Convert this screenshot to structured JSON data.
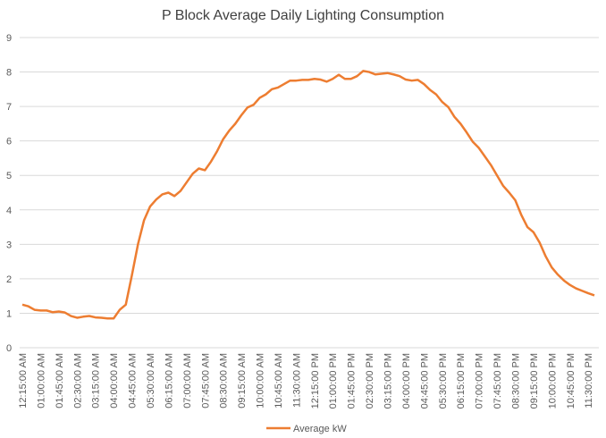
{
  "chart_data": {
    "type": "line",
    "title": "P Block Average Daily Lighting Consumption",
    "categories": [
      "12:15:00 AM",
      null,
      null,
      "01:00:00 AM",
      null,
      null,
      "01:45:00 AM",
      null,
      null,
      "02:30:00 AM",
      null,
      null,
      "03:15:00 AM",
      null,
      null,
      "04:00:00 AM",
      null,
      null,
      "04:45:00 AM",
      null,
      null,
      "05:30:00 AM",
      null,
      null,
      "06:15:00 AM",
      null,
      null,
      "07:00:00 AM",
      null,
      null,
      "07:45:00 AM",
      null,
      null,
      "08:30:00 AM",
      null,
      null,
      "09:15:00 AM",
      null,
      null,
      "10:00:00 AM",
      null,
      null,
      "10:45:00 AM",
      null,
      null,
      "11:30:00 AM",
      null,
      null,
      "12:15:00 PM",
      null,
      null,
      "01:00:00 PM",
      null,
      null,
      "01:45:00 PM",
      null,
      null,
      "02:30:00 PM",
      null,
      null,
      "03:15:00 PM",
      null,
      null,
      "04:00:00 PM",
      null,
      null,
      "04:45:00 PM",
      null,
      null,
      "05:30:00 PM",
      null,
      null,
      "06:15:00 PM",
      null,
      null,
      "07:00:00 PM",
      null,
      null,
      "07:45:00 PM",
      null,
      null,
      "08:30:00 PM",
      null,
      null,
      "09:15:00 PM",
      null,
      null,
      "10:00:00 PM",
      null,
      null,
      "10:45:00 PM",
      null,
      null,
      "11:30:00 PM",
      null
    ],
    "series": [
      {
        "name": "Average kW",
        "color": "#ed7d31",
        "values": [
          1.25,
          1.2,
          1.1,
          1.08,
          1.08,
          1.03,
          1.05,
          1.02,
          0.92,
          0.87,
          0.9,
          0.92,
          0.88,
          0.87,
          0.85,
          0.85,
          1.1,
          1.25,
          2.1,
          3.0,
          3.7,
          4.1,
          4.3,
          4.45,
          4.5,
          4.4,
          4.55,
          4.8,
          5.05,
          5.2,
          5.15,
          5.4,
          5.7,
          6.05,
          6.3,
          6.5,
          6.75,
          6.97,
          7.05,
          7.25,
          7.35,
          7.5,
          7.55,
          7.65,
          7.75,
          7.75,
          7.77,
          7.77,
          7.8,
          7.78,
          7.72,
          7.8,
          7.92,
          7.8,
          7.8,
          7.88,
          8.03,
          8.0,
          7.93,
          7.95,
          7.97,
          7.93,
          7.88,
          7.78,
          7.75,
          7.77,
          7.65,
          7.48,
          7.35,
          7.13,
          6.98,
          6.7,
          6.5,
          6.25,
          5.98,
          5.8,
          5.55,
          5.3,
          5.0,
          4.7,
          4.5,
          4.28,
          3.85,
          3.5,
          3.35,
          3.05,
          2.65,
          2.33,
          2.12,
          1.95,
          1.82,
          1.72,
          1.65,
          1.58,
          1.52
        ]
      }
    ],
    "ylim": [
      0,
      9
    ],
    "yticks": [
      0,
      1,
      2,
      3,
      4,
      5,
      6,
      7,
      8,
      9
    ],
    "grid": true,
    "legend": "bottom"
  }
}
